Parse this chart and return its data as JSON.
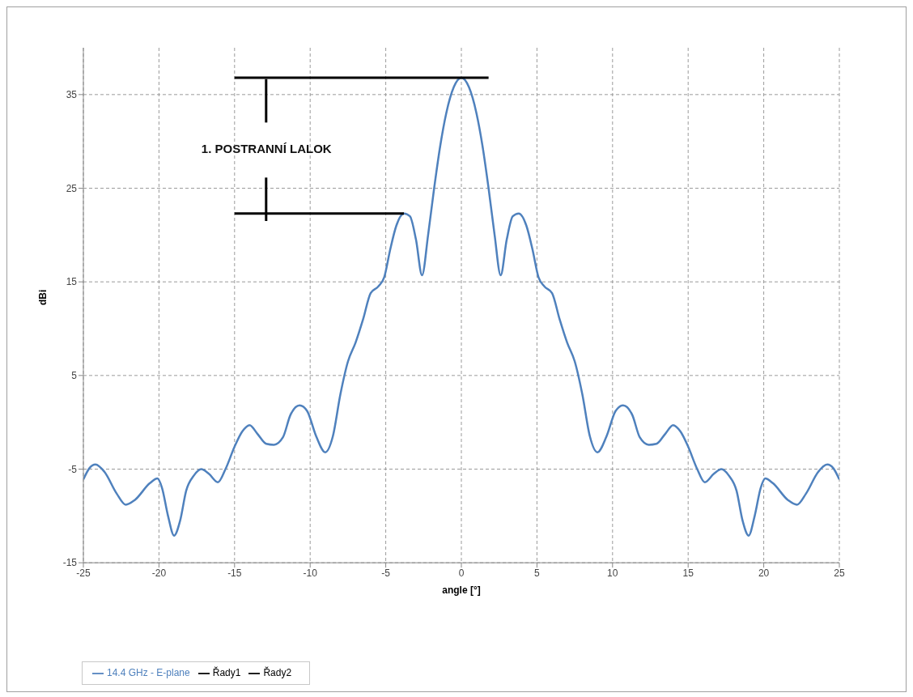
{
  "chart_data": {
    "type": "line",
    "xlabel": "angle [°]",
    "ylabel": "dBi",
    "xlim": [
      -25,
      25
    ],
    "xticks": [
      -25,
      -20,
      -15,
      -10,
      -5,
      0,
      5,
      10,
      15,
      20,
      25
    ],
    "ylim": [
      -15,
      40
    ],
    "yticks": [
      -15,
      -5,
      5,
      15,
      25,
      35
    ],
    "grid": true,
    "legend": "bottom left",
    "marker": "none",
    "annotations": [
      "1. POSTRANNÍ LALOK"
    ],
    "series": [
      {
        "name": "14.4 GHz - E-plane",
        "color": "#4f81bd",
        "x": [
          -25,
          -24.6,
          -24.2,
          -23.6,
          -22.8,
          -22.2,
          -21.6,
          -20.6,
          -20.1,
          -19.8,
          -19.4,
          -19,
          -18.6,
          -18.2,
          -17.7,
          -17.2,
          -16.7,
          -16.1,
          -15.6,
          -15,
          -14.5,
          -14,
          -13.5,
          -12.9,
          -12.4,
          -11.8,
          -11.3,
          -10.7,
          -10.2,
          -9.6,
          -9,
          -8.5,
          -8,
          -7.5,
          -7,
          -6.5,
          -6,
          -5.5,
          -5.1,
          -4.7,
          -4.3,
          -3.8,
          -3.4,
          -3,
          -2.6,
          -2.2,
          -1.8,
          -1.4,
          -1,
          -0.5,
          0,
          0.5,
          1,
          1.4,
          1.8,
          2.2,
          2.6,
          3,
          3.4,
          3.8,
          4.3,
          4.7,
          5.1,
          5.5,
          6,
          6.5,
          7,
          7.5,
          8,
          8.5,
          9,
          9.6,
          10.2,
          10.7,
          11.3,
          11.8,
          12.4,
          12.9,
          13.5,
          14,
          14.5,
          15,
          15.6,
          16.1,
          16.7,
          17.2,
          17.7,
          18.2,
          18.6,
          19,
          19.4,
          19.8,
          20.1,
          20.6,
          21.6,
          22.2,
          22.8,
          23.6,
          24.2,
          24.6,
          25
        ],
        "values": [
          -6.1,
          -4.9,
          -4.5,
          -5.3,
          -7.6,
          -8.8,
          -8.3,
          -6.5,
          -6,
          -7,
          -10,
          -12.1,
          -10.5,
          -7.3,
          -5.7,
          -5,
          -5.5,
          -6.4,
          -5,
          -2.6,
          -1,
          -0.3,
          -1.2,
          -2.3,
          -2.4,
          -1.6,
          0.8,
          1.8,
          1.2,
          -1.5,
          -3.2,
          -1.5,
          3,
          6.5,
          8.5,
          11,
          13.8,
          14.5,
          15.5,
          18.5,
          21,
          22.3,
          22,
          19.5,
          15.7,
          20,
          25,
          29.5,
          33,
          35.8,
          36.8,
          35.8,
          33,
          29.5,
          25,
          20,
          15.7,
          19.5,
          22,
          22.3,
          21,
          18.5,
          15.5,
          14.5,
          13.8,
          11,
          8.5,
          6.5,
          3,
          -1.5,
          -3.2,
          -1.5,
          1.2,
          1.8,
          0.8,
          -1.6,
          -2.4,
          -2.3,
          -1.2,
          -0.3,
          -1,
          -2.6,
          -5,
          -6.4,
          -5.5,
          -5,
          -5.7,
          -7.3,
          -10.5,
          -12.1,
          -10,
          -7,
          -6,
          -6.5,
          -8.3,
          -8.8,
          -7.6,
          -5.3,
          -4.5,
          -4.9,
          -6.1
        ]
      },
      {
        "name": "Řady1",
        "color": "#000000",
        "x": [
          -15,
          1.8
        ],
        "values": [
          36.8,
          36.8
        ]
      },
      {
        "name": "Řady2",
        "color": "#000000",
        "x": [
          -15,
          -3.8
        ],
        "values": [
          22.3,
          22.3
        ]
      }
    ]
  }
}
